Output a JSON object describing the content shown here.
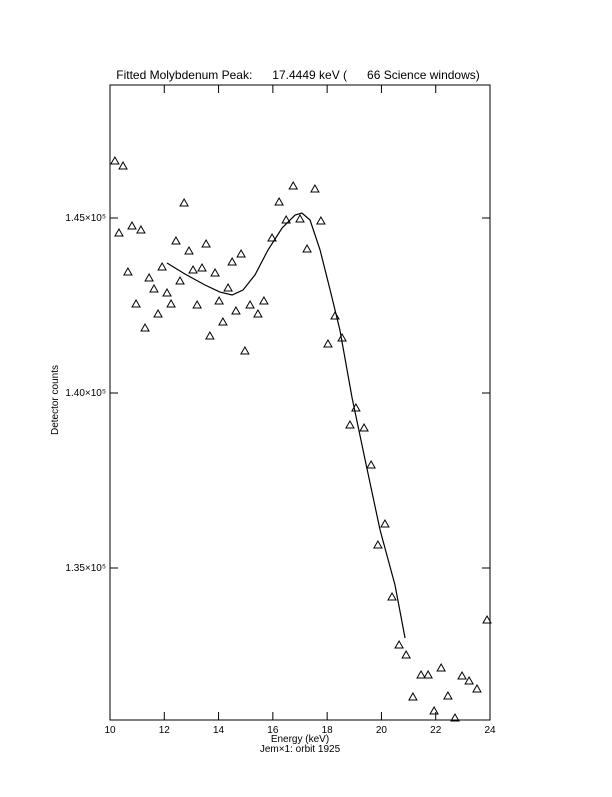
{
  "chart_data": {
    "type": "scatter",
    "title": "Fitted Molybdenum Peak:      17.4449 keV (      66 Science windows)",
    "x_label": "Energy (keV)",
    "subtitle": "Jem×1: orbit 1925",
    "y_label": "Detector counts",
    "xlim": [
      10,
      24
    ],
    "xticks": [
      10,
      12,
      14,
      16,
      18,
      20,
      22,
      24
    ],
    "ylim": [
      130657,
      148800
    ],
    "yticks": [
      {
        "value": 135000,
        "label": "1.35×10⁵"
      },
      {
        "value": 140000,
        "label": "1.40×10⁵"
      },
      {
        "value": 145000,
        "label": "1.45×10⁵"
      }
    ],
    "series": [
      {
        "type": "scatter",
        "color": "#000000",
        "x": [
          10.18,
          10.48,
          10.33,
          10.66,
          10.81,
          10.96,
          11.14,
          11.29,
          11.44,
          11.62,
          11.77,
          11.92,
          12.1,
          12.25,
          12.43,
          12.58,
          12.73,
          12.91,
          13.06,
          13.21,
          13.39,
          13.54,
          13.68,
          13.87,
          14.02,
          14.16,
          14.35,
          14.5,
          14.64,
          14.83,
          14.97,
          15.16,
          15.45,
          15.67,
          15.97,
          16.23,
          16.49,
          16.75,
          17.0,
          17.26,
          17.55,
          17.77,
          18.03,
          18.29,
          18.55,
          18.84,
          19.06,
          19.36,
          19.62,
          19.87,
          20.13,
          20.39,
          20.65,
          20.91,
          21.16,
          21.46,
          21.72,
          21.94,
          22.2,
          22.45,
          22.71,
          22.97,
          23.23,
          23.52,
          23.89
        ],
        "values": [
          146628,
          146485,
          144571,
          143457,
          144771,
          142542,
          144657,
          141857,
          143285,
          142971,
          142257,
          143600,
          142857,
          142542,
          144342,
          143200,
          145428,
          144057,
          143514,
          142514,
          143571,
          144257,
          141628,
          143428,
          142628,
          142028,
          143000,
          143742,
          142342,
          143971,
          141200,
          142514,
          142257,
          142628,
          144428,
          145457,
          144942,
          145914,
          144971,
          144114,
          145828,
          144914,
          141400,
          142200,
          141571,
          139085,
          139571,
          139000,
          137942,
          135657,
          136257,
          134171,
          132800,
          132514,
          131314,
          131943,
          131943,
          130914,
          132143,
          131343,
          130714,
          131914,
          131771,
          131543,
          133514
        ]
      },
      {
        "type": "line",
        "color": "#000000",
        "x": [
          12.1,
          12.76,
          13.5,
          14.05,
          14.5,
          14.9,
          15.34,
          15.82,
          16.34,
          16.82,
          17.07,
          17.37,
          17.74,
          18.11,
          18.47,
          18.92,
          19.4,
          19.95,
          20.5,
          20.87
        ],
        "values": [
          143714,
          143400,
          143085,
          142885,
          142800,
          142943,
          143371,
          144085,
          144714,
          145085,
          145142,
          144942,
          144085,
          142943,
          141800,
          139857,
          138085,
          136085,
          134514,
          133000
        ]
      }
    ]
  }
}
